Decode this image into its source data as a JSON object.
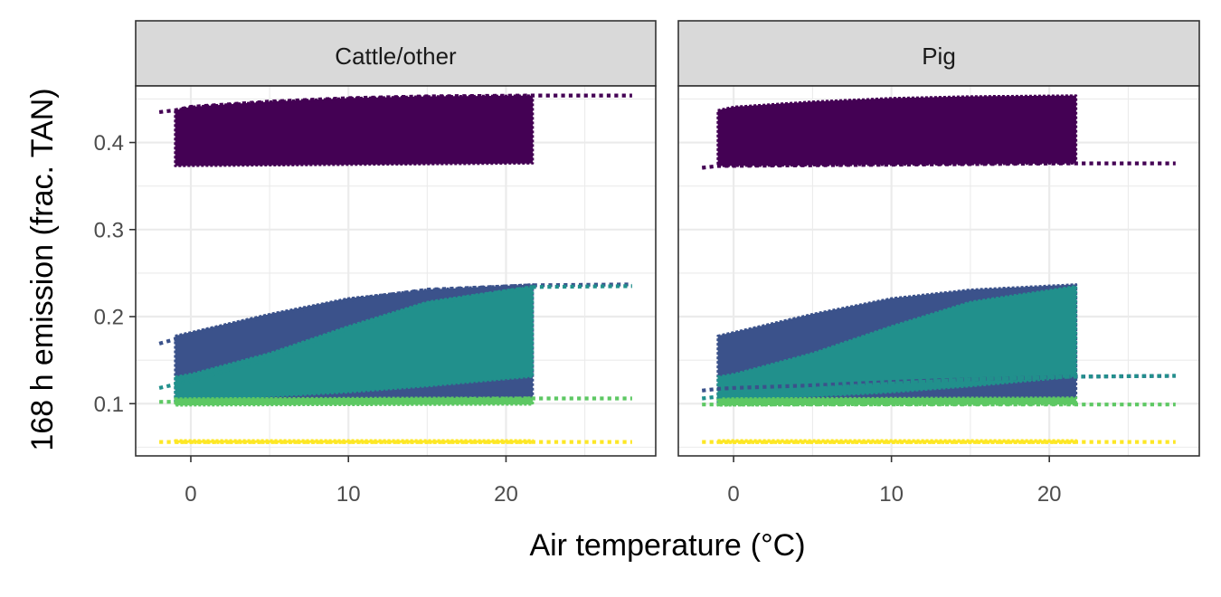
{
  "chart_data": {
    "type": "area",
    "xlabel": "Air temperature",
    "xlabel_unit": "(°C)",
    "ylabel": "168 h emission (frac. TAN)",
    "xlim": [
      -3.5,
      29.5
    ],
    "ylim": [
      0.04,
      0.465
    ],
    "x_ticks": [
      0,
      10,
      20
    ],
    "y_ticks": [
      0.1,
      0.2,
      0.3,
      0.4
    ],
    "x_tick_labels": [
      "0",
      "10",
      "20"
    ],
    "y_tick_labels": [
      "0.1",
      "0.2",
      "0.3",
      "0.4"
    ],
    "grid": true,
    "legend": "none",
    "band_x_range": [
      -1,
      21.7
    ],
    "dotted_x_range": [
      -2,
      28
    ],
    "panels": [
      {
        "strip": "Cattle/other",
        "series": [
          {
            "color": "#440154",
            "band_lower": [
              [
                -1,
                0.373
              ],
              [
                21.7,
                0.376
              ]
            ],
            "band_upper": [
              [
                -1,
                0.437
              ],
              [
                0,
                0.441
              ],
              [
                5,
                0.447
              ],
              [
                10,
                0.451
              ],
              [
                15,
                0.453
              ],
              [
                21.7,
                0.454
              ]
            ],
            "dotted": [
              [
                -2,
                0.435
              ],
              [
                -1,
                0.437
              ],
              [
                0,
                0.441
              ],
              [
                5,
                0.447
              ],
              [
                10,
                0.451
              ],
              [
                15,
                0.453
              ],
              [
                21.7,
                0.454
              ],
              [
                28,
                0.454
              ]
            ]
          },
          {
            "color": "#3B528B",
            "band_lower": [
              [
                -1,
                0.102
              ],
              [
                21.7,
                0.107
              ]
            ],
            "band_upper": [
              [
                -1,
                0.178
              ],
              [
                0,
                0.182
              ],
              [
                5,
                0.203
              ],
              [
                10,
                0.221
              ],
              [
                15,
                0.231
              ],
              [
                21.7,
                0.237
              ]
            ],
            "dotted": [
              [
                -2,
                0.169
              ],
              [
                -1,
                0.174
              ],
              [
                0,
                0.18
              ],
              [
                5,
                0.201
              ],
              [
                10,
                0.219
              ],
              [
                15,
                0.231
              ],
              [
                21.7,
                0.236
              ],
              [
                28,
                0.237
              ]
            ]
          },
          {
            "color": "#21908C",
            "band_lower": [
              [
                -1,
                0.102
              ],
              [
                0,
                0.104
              ],
              [
                5,
                0.108
              ],
              [
                10,
                0.113
              ],
              [
                15,
                0.12
              ],
              [
                21.7,
                0.131
              ]
            ],
            "band_upper": [
              [
                -1,
                0.131
              ],
              [
                0,
                0.134
              ],
              [
                5,
                0.158
              ],
              [
                10,
                0.189
              ],
              [
                15,
                0.217
              ],
              [
                21.7,
                0.235
              ]
            ],
            "dotted": [
              [
                -2,
                0.118
              ],
              [
                -1,
                0.122
              ],
              [
                0,
                0.126
              ],
              [
                5,
                0.153
              ],
              [
                10,
                0.186
              ],
              [
                15,
                0.215
              ],
              [
                21.7,
                0.234
              ],
              [
                28,
                0.235
              ]
            ]
          },
          {
            "color": "#5DC863",
            "band_lower": [
              [
                -1,
                0.098
              ],
              [
                21.7,
                0.099
              ]
            ],
            "band_upper": [
              [
                -1,
                0.106
              ],
              [
                21.7,
                0.107
              ]
            ],
            "dotted": [
              [
                -2,
                0.102
              ],
              [
                21.7,
                0.106
              ],
              [
                28,
                0.106
              ]
            ]
          },
          {
            "color": "#FDE725",
            "band_lower": [
              [
                -1,
                0.055
              ],
              [
                21.7,
                0.055
              ]
            ],
            "band_upper": [
              [
                -1,
                0.058
              ],
              [
                21.7,
                0.058
              ]
            ],
            "dotted": [
              [
                -2,
                0.056
              ],
              [
                28,
                0.056
              ]
            ]
          }
        ]
      },
      {
        "strip": "Pig",
        "series": [
          {
            "color": "#440154",
            "band_lower": [
              [
                -1,
                0.373
              ],
              [
                21.7,
                0.376
              ]
            ],
            "band_upper": [
              [
                -1,
                0.437
              ],
              [
                0,
                0.441
              ],
              [
                5,
                0.447
              ],
              [
                10,
                0.451
              ],
              [
                15,
                0.453
              ],
              [
                21.7,
                0.454
              ]
            ],
            "dotted": [
              [
                -2,
                0.371
              ],
              [
                -1,
                0.373
              ],
              [
                21.7,
                0.376
              ],
              [
                28,
                0.376
              ]
            ]
          },
          {
            "color": "#3B528B",
            "band_lower": [
              [
                -1,
                0.102
              ],
              [
                21.7,
                0.107
              ]
            ],
            "band_upper": [
              [
                -1,
                0.178
              ],
              [
                0,
                0.182
              ],
              [
                5,
                0.203
              ],
              [
                10,
                0.221
              ],
              [
                15,
                0.231
              ],
              [
                21.7,
                0.237
              ]
            ],
            "dotted": [
              [
                -2,
                0.115
              ],
              [
                -1,
                0.117
              ],
              [
                0,
                0.118
              ],
              [
                5,
                0.121
              ],
              [
                10,
                0.125
              ],
              [
                15,
                0.128
              ],
              [
                21.7,
                0.131
              ],
              [
                28,
                0.132
              ]
            ]
          },
          {
            "color": "#21908C",
            "band_lower": [
              [
                -1,
                0.102
              ],
              [
                0,
                0.104
              ],
              [
                5,
                0.108
              ],
              [
                10,
                0.113
              ],
              [
                15,
                0.12
              ],
              [
                21.7,
                0.131
              ]
            ],
            "band_upper": [
              [
                -1,
                0.131
              ],
              [
                0,
                0.134
              ],
              [
                5,
                0.158
              ],
              [
                10,
                0.189
              ],
              [
                15,
                0.217
              ],
              [
                21.7,
                0.235
              ]
            ],
            "dotted": [
              [
                -2,
                0.106
              ],
              [
                -1,
                0.108
              ],
              [
                0,
                0.11
              ],
              [
                5,
                0.117
              ],
              [
                10,
                0.123
              ],
              [
                15,
                0.128
              ],
              [
                21.7,
                0.131
              ],
              [
                28,
                0.132
              ]
            ]
          },
          {
            "color": "#5DC863",
            "band_lower": [
              [
                -1,
                0.098
              ],
              [
                21.7,
                0.099
              ]
            ],
            "band_upper": [
              [
                -1,
                0.106
              ],
              [
                21.7,
                0.107
              ]
            ],
            "dotted": [
              [
                -2,
                0.099
              ],
              [
                21.7,
                0.099
              ],
              [
                28,
                0.099
              ]
            ]
          },
          {
            "color": "#FDE725",
            "band_lower": [
              [
                -1,
                0.055
              ],
              [
                21.7,
                0.055
              ]
            ],
            "band_upper": [
              [
                -1,
                0.058
              ],
              [
                21.7,
                0.058
              ]
            ],
            "dotted": [
              [
                -2,
                0.056
              ],
              [
                28,
                0.056
              ]
            ]
          }
        ]
      }
    ]
  }
}
